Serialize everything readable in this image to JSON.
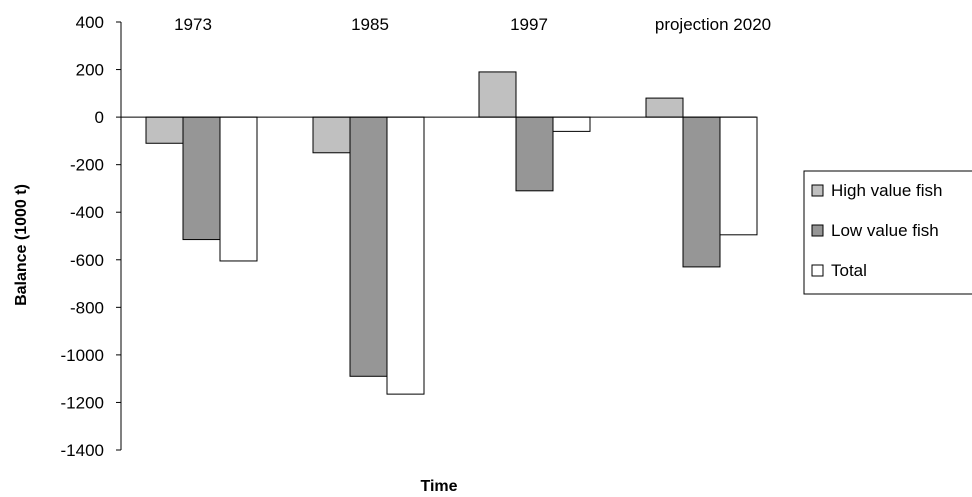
{
  "chart_data": {
    "type": "bar",
    "title": "",
    "xlabel": "Time",
    "ylabel": "Balance (1000 t)",
    "ylim": [
      -1400,
      400
    ],
    "yticks": [
      400,
      200,
      0,
      -200,
      -400,
      -600,
      -800,
      -1000,
      -1200,
      -1400
    ],
    "categories": [
      "1973",
      "1985",
      "1997",
      "projection 2020"
    ],
    "grid": false,
    "legend_position": "right",
    "series": [
      {
        "name": "High value fish",
        "color": "#c0c0c0",
        "values": [
          -110,
          -150,
          190,
          80
        ]
      },
      {
        "name": "Low  value fish",
        "color": "#969696",
        "values": [
          -515,
          -1090,
          -310,
          -630
        ]
      },
      {
        "name": "Total",
        "color": "#ffffff",
        "values": [
          -605,
          -1165,
          -60,
          -495
        ]
      }
    ]
  }
}
